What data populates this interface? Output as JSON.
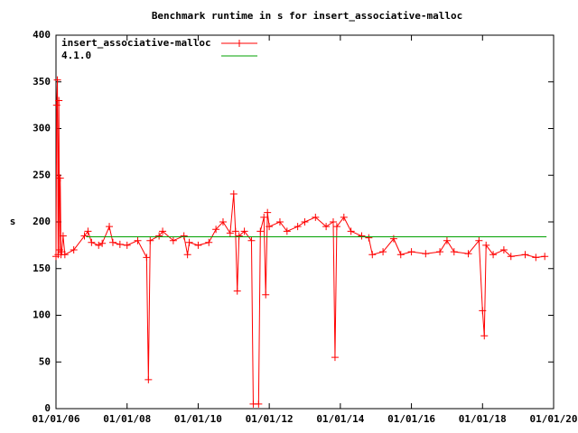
{
  "chart_data": {
    "type": "line",
    "title": "Benchmark runtime in s for insert_associative-malloc",
    "ylabel": "s",
    "xlim": [
      2006,
      2020
    ],
    "xticks": [
      {
        "value": 2006,
        "label": "01/01/06"
      },
      {
        "value": 2008,
        "label": "01/01/08"
      },
      {
        "value": 2010,
        "label": "01/01/10"
      },
      {
        "value": 2012,
        "label": "01/01/12"
      },
      {
        "value": 2014,
        "label": "01/01/14"
      },
      {
        "value": 2016,
        "label": "01/01/16"
      },
      {
        "value": 2018,
        "label": "01/01/18"
      },
      {
        "value": 2020,
        "label": "01/01/20"
      }
    ],
    "ylim": [
      0,
      400
    ],
    "yticks": [
      0,
      50,
      100,
      150,
      200,
      250,
      300,
      350,
      400
    ],
    "legend": "top-left",
    "series": [
      {
        "name": "insert_associative-malloc",
        "color": "#ff0000",
        "marker": "+",
        "x": [
          2006.0,
          2006.02,
          2006.04,
          2006.06,
          2006.08,
          2006.1,
          2006.12,
          2006.14,
          2006.16,
          2006.2,
          2006.25,
          2006.5,
          2006.8,
          2006.9,
          2007.0,
          2007.2,
          2007.3,
          2007.5,
          2007.6,
          2007.8,
          2008.0,
          2008.3,
          2008.55,
          2008.6,
          2008.65,
          2008.9,
          2009.0,
          2009.3,
          2009.6,
          2009.7,
          2009.75,
          2010.0,
          2010.3,
          2010.5,
          2010.7,
          2010.9,
          2011.0,
          2011.05,
          2011.1,
          2011.15,
          2011.3,
          2011.5,
          2011.55,
          2011.7,
          2011.75,
          2011.85,
          2011.9,
          2011.95,
          2012.0,
          2012.3,
          2012.5,
          2012.8,
          2013.0,
          2013.3,
          2013.6,
          2013.8,
          2013.85,
          2013.9,
          2014.1,
          2014.3,
          2014.6,
          2014.8,
          2014.9,
          2015.2,
          2015.5,
          2015.7,
          2016.0,
          2016.4,
          2016.8,
          2017.0,
          2017.2,
          2017.6,
          2017.9,
          2018.0,
          2018.05,
          2018.1,
          2018.3,
          2018.6,
          2018.8,
          2019.2,
          2019.5,
          2019.75
        ],
        "values": [
          163,
          325,
          352,
          165,
          330,
          170,
          247,
          165,
          168,
          185,
          165,
          170,
          185,
          190,
          178,
          175,
          177,
          195,
          178,
          176,
          175,
          180,
          162,
          31,
          180,
          185,
          190,
          180,
          185,
          165,
          178,
          175,
          178,
          192,
          200,
          188,
          230,
          190,
          126,
          185,
          190,
          180,
          5,
          5,
          190,
          205,
          122,
          210,
          195,
          200,
          190,
          195,
          200,
          205,
          195,
          200,
          55,
          195,
          205,
          190,
          185,
          183,
          165,
          168,
          182,
          165,
          168,
          166,
          168,
          180,
          168,
          166,
          180,
          105,
          78,
          175,
          165,
          170,
          163,
          165,
          162,
          163
        ]
      },
      {
        "name": "4.1.0",
        "color": "#00a000",
        "x": [
          2006.85,
          2019.8
        ],
        "values": [
          184,
          184
        ]
      }
    ]
  }
}
